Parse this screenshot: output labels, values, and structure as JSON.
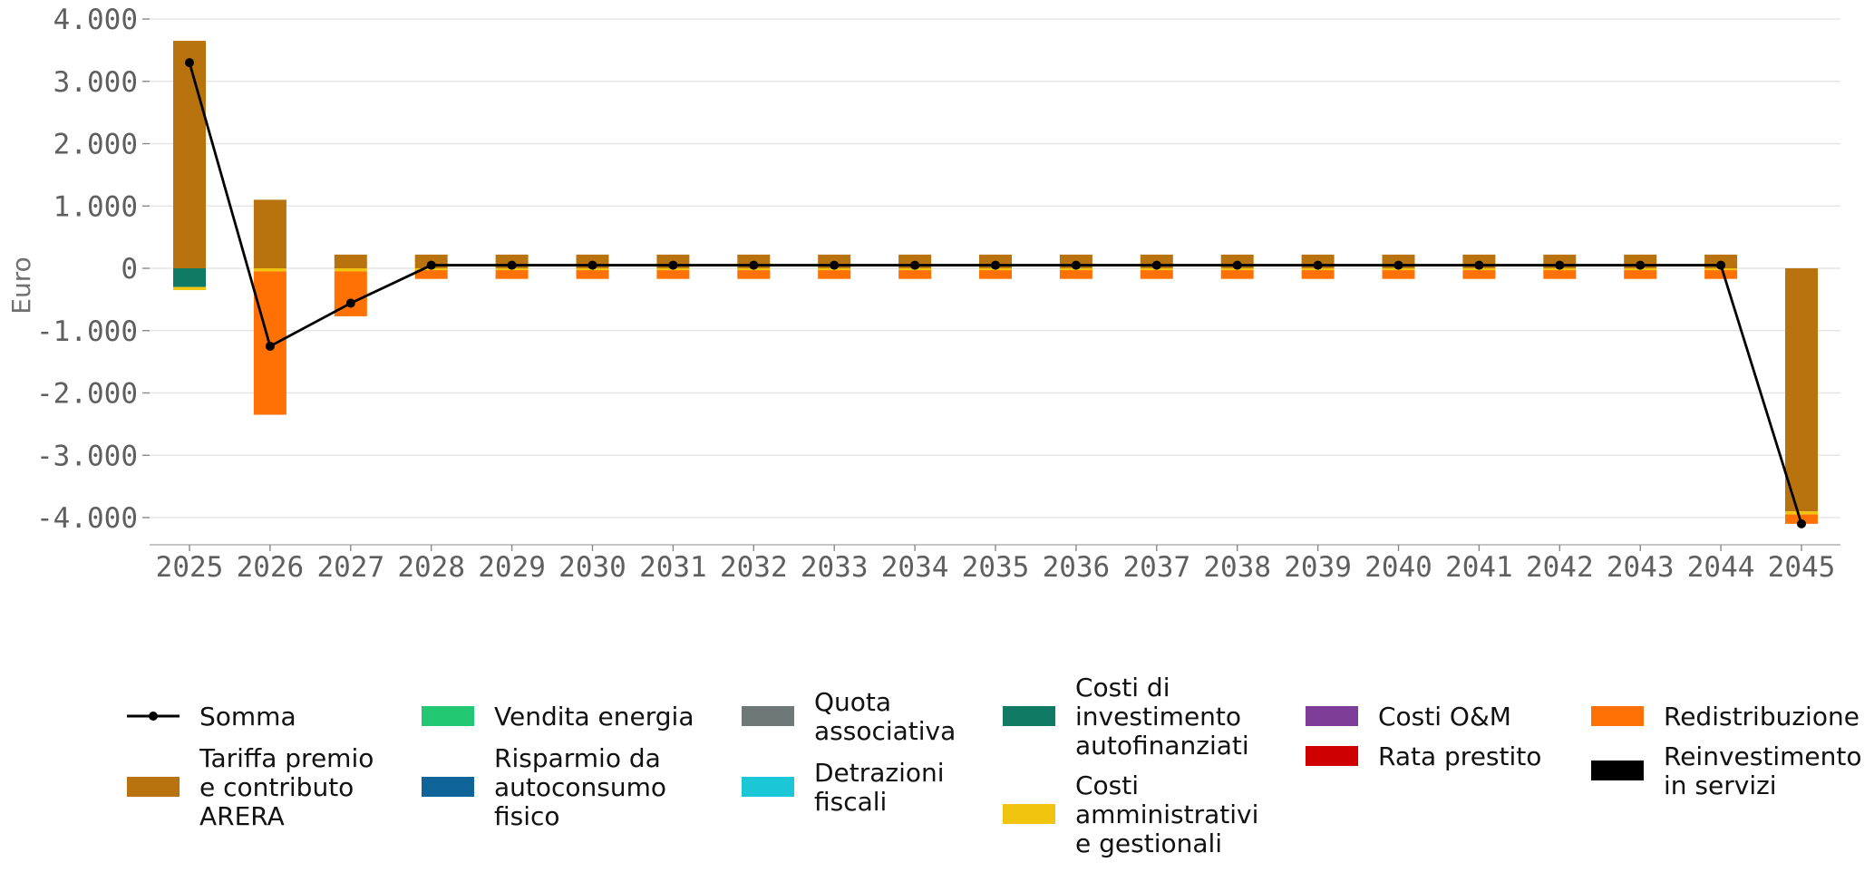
{
  "chart_data": {
    "type": "bar",
    "ylabel": "Euro",
    "ylim": [
      -4450,
      4100
    ],
    "yticks": [
      4000,
      3000,
      2000,
      1000,
      0,
      -1000,
      -2000,
      -3000,
      -4000
    ],
    "ytick_labels": [
      "4.000",
      "3.000",
      "2.000",
      "1.000",
      "0",
      "-1.000",
      "-2.000",
      "-3.000",
      "-4.000"
    ],
    "grid": true,
    "legend_position": "bottom",
    "categories": [
      "2025",
      "2026",
      "2027",
      "2028",
      "2029",
      "2030",
      "2031",
      "2032",
      "2033",
      "2034",
      "2035",
      "2036",
      "2037",
      "2038",
      "2039",
      "2040",
      "2041",
      "2042",
      "2043",
      "2044",
      "2045"
    ],
    "series": [
      {
        "name": "Tariffa premio\ne contributo\nARERA",
        "color": "#b8730f",
        "values": [
          3650,
          1100,
          220,
          220,
          220,
          220,
          220,
          220,
          220,
          220,
          220,
          220,
          220,
          220,
          220,
          220,
          220,
          220,
          220,
          220,
          -3900
        ]
      },
      {
        "name": "Vendita energia",
        "color": "#22c771",
        "values": [
          0,
          0,
          0,
          0,
          0,
          0,
          0,
          0,
          0,
          0,
          0,
          0,
          0,
          0,
          0,
          0,
          0,
          0,
          0,
          0,
          0
        ]
      },
      {
        "name": "Risparmio da\nautoconsumo\nfisico",
        "color": "#0e6398",
        "values": [
          0,
          0,
          0,
          0,
          0,
          0,
          0,
          0,
          0,
          0,
          0,
          0,
          0,
          0,
          0,
          0,
          0,
          0,
          0,
          0,
          0
        ]
      },
      {
        "name": "Quota\nassociativa",
        "color": "#6e7878",
        "values": [
          0,
          0,
          0,
          0,
          0,
          0,
          0,
          0,
          0,
          0,
          0,
          0,
          0,
          0,
          0,
          0,
          0,
          0,
          0,
          0,
          0
        ]
      },
      {
        "name": "Detrazioni\nfiscali",
        "color": "#1bc6d6",
        "values": [
          0,
          0,
          0,
          0,
          0,
          0,
          0,
          0,
          0,
          0,
          0,
          0,
          0,
          0,
          0,
          0,
          0,
          0,
          0,
          0,
          0
        ]
      },
      {
        "name": "Costi di\ninvestimento\nautofinanziati",
        "color": "#117a65",
        "values": [
          -300,
          0,
          0,
          0,
          0,
          0,
          0,
          0,
          0,
          0,
          0,
          0,
          0,
          0,
          0,
          0,
          0,
          0,
          0,
          0,
          0
        ]
      },
      {
        "name": "Costi\namministrativi\ne gestionali",
        "color": "#f1c40f",
        "values": [
          -50,
          -50,
          -50,
          -30,
          -30,
          -30,
          -30,
          -30,
          -30,
          -30,
          -30,
          -30,
          -30,
          -30,
          -30,
          -30,
          -30,
          -30,
          -30,
          -30,
          -50
        ]
      },
      {
        "name": "Costi O&M",
        "color": "#7d3c98",
        "values": [
          0,
          0,
          0,
          0,
          0,
          0,
          0,
          0,
          0,
          0,
          0,
          0,
          0,
          0,
          0,
          0,
          0,
          0,
          0,
          0,
          0
        ]
      },
      {
        "name": "Rata prestito",
        "color": "#cf0000",
        "values": [
          0,
          0,
          0,
          0,
          0,
          0,
          0,
          0,
          0,
          0,
          0,
          0,
          0,
          0,
          0,
          0,
          0,
          0,
          0,
          0,
          0
        ]
      },
      {
        "name": "Redistribuzione",
        "color": "#ff7105",
        "values": [
          0,
          -2300,
          -720,
          -140,
          -140,
          -140,
          -140,
          -140,
          -140,
          -140,
          -140,
          -140,
          -140,
          -140,
          -140,
          -140,
          -140,
          -140,
          -140,
          -140,
          -150
        ]
      },
      {
        "name": "Reinvestimento\nin servizi",
        "color": "#000000",
        "values": [
          0,
          0,
          0,
          0,
          0,
          0,
          0,
          0,
          0,
          0,
          0,
          0,
          0,
          0,
          0,
          0,
          0,
          0,
          0,
          0,
          0
        ]
      }
    ],
    "line": {
      "name": "Somma",
      "color": "#000000",
      "values": [
        3300,
        -1250,
        -560,
        50,
        50,
        50,
        50,
        50,
        50,
        50,
        50,
        50,
        50,
        50,
        50,
        50,
        50,
        50,
        50,
        50,
        -4100
      ]
    },
    "legend": {
      "items": [
        {
          "key": "line",
          "label": [
            "Somma"
          ]
        },
        {
          "key": 0,
          "label": [
            "Tariffa premio",
            "e contributo",
            "ARERA"
          ]
        },
        {
          "key": 1,
          "label": [
            "Vendita energia"
          ]
        },
        {
          "key": 2,
          "label": [
            "Risparmio da",
            "autoconsumo",
            "fisico"
          ]
        },
        {
          "key": 3,
          "label": [
            "Quota",
            "associativa"
          ]
        },
        {
          "key": 4,
          "label": [
            "Detrazioni",
            "fiscali"
          ]
        },
        {
          "key": 5,
          "label": [
            "Costi di",
            "investimento",
            "autofinanziati"
          ]
        },
        {
          "key": 6,
          "label": [
            "Costi",
            "amministrativi",
            "e gestionali"
          ]
        },
        {
          "key": 7,
          "label": [
            "Costi O&M"
          ]
        },
        {
          "key": 8,
          "label": [
            "Rata prestito"
          ]
        },
        {
          "key": 9,
          "label": [
            "Redistribuzione"
          ]
        },
        {
          "key": 10,
          "label": [
            "Reinvestimento",
            "in servizi"
          ]
        }
      ]
    }
  }
}
